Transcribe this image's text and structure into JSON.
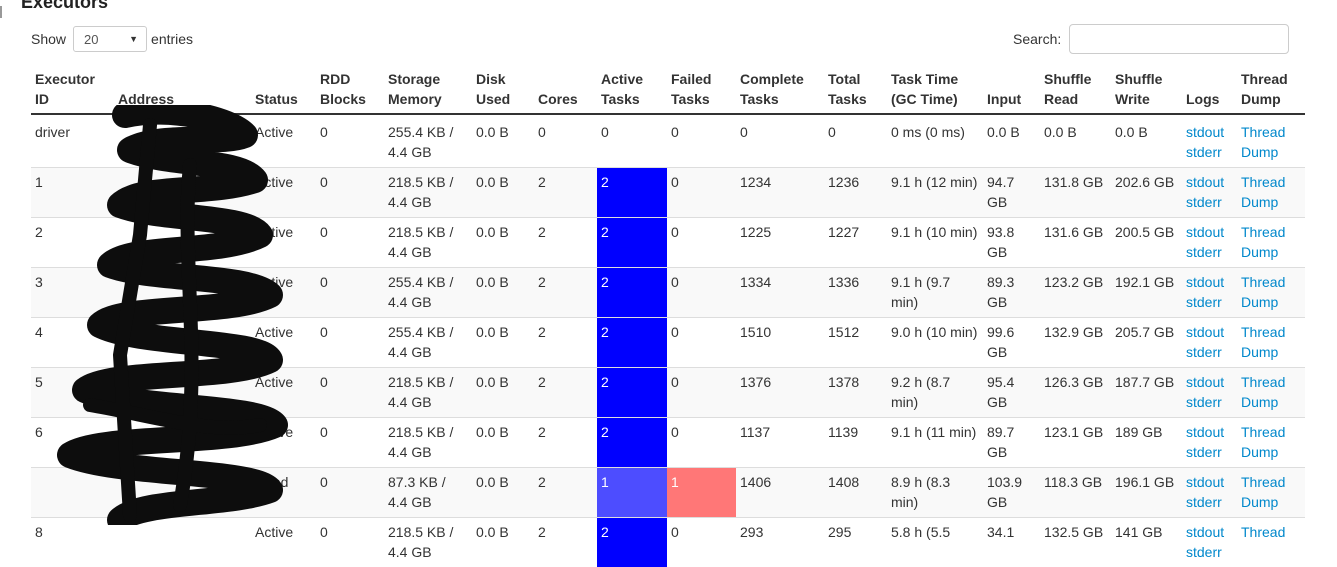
{
  "page": {
    "title": "Executors",
    "show_label": "Show",
    "entries_value": "20",
    "entries_label": "entries",
    "search_label": "Search:",
    "search_value": ""
  },
  "colors": {
    "active_bg": "#0000ff",
    "active_partial_bg": "#4d4dff",
    "failed_bg": "#ff7777",
    "link": "#0088cc"
  },
  "table": {
    "headers": [
      "Executor ID",
      "Address",
      "Status",
      "RDD Blocks",
      "Storage Memory",
      "Disk Used",
      "Cores",
      "Active Tasks",
      "Failed Tasks",
      "Complete Tasks",
      "Total Tasks",
      "Task Time (GC Time)",
      "Input",
      "Shuffle Read",
      "Shuffle Write",
      "Logs",
      "Thread Dump"
    ],
    "rows": [
      {
        "id": "driver",
        "address": "",
        "status": "Active",
        "rdd": "0",
        "storage": "255.4 KB / 4.4 GB",
        "disk": "0.0 B",
        "cores": "0",
        "active": "0",
        "failed": "0",
        "complete": "0",
        "total": "0",
        "task_time": "0 ms (0 ms)",
        "input": "0.0 B",
        "shuffle_read": "0.0 B",
        "shuffle_write": "0.0 B",
        "stdout": "stdout",
        "stderr": "stderr",
        "thread_dump": "Thread Dump"
      },
      {
        "id": "1",
        "address": "",
        "status": "Active",
        "rdd": "0",
        "storage": "218.5 KB / 4.4 GB",
        "disk": "0.0 B",
        "cores": "2",
        "active": "2",
        "failed": "0",
        "complete": "1234",
        "total": "1236",
        "task_time": "9.1 h (12 min)",
        "input": "94.7 GB",
        "shuffle_read": "131.8 GB",
        "shuffle_write": "202.6 GB",
        "stdout": "stdout",
        "stderr": "stderr",
        "thread_dump": "Thread Dump"
      },
      {
        "id": "2",
        "address": "",
        "status": "Active",
        "rdd": "0",
        "storage": "218.5 KB / 4.4 GB",
        "disk": "0.0 B",
        "cores": "2",
        "active": "2",
        "failed": "0",
        "complete": "1225",
        "total": "1227",
        "task_time": "9.1 h (10 min)",
        "input": "93.8 GB",
        "shuffle_read": "131.6 GB",
        "shuffle_write": "200.5 GB",
        "stdout": "stdout",
        "stderr": "stderr",
        "thread_dump": "Thread Dump"
      },
      {
        "id": "3",
        "address": "",
        "status": "Active",
        "rdd": "0",
        "storage": "255.4 KB / 4.4 GB",
        "disk": "0.0 B",
        "cores": "2",
        "active": "2",
        "failed": "0",
        "complete": "1334",
        "total": "1336",
        "task_time": "9.1 h (9.7 min)",
        "input": "89.3 GB",
        "shuffle_read": "123.2 GB",
        "shuffle_write": "192.1 GB",
        "stdout": "stdout",
        "stderr": "stderr",
        "thread_dump": "Thread Dump"
      },
      {
        "id": "4",
        "address": "",
        "status": "Active",
        "rdd": "0",
        "storage": "255.4 KB / 4.4 GB",
        "disk": "0.0 B",
        "cores": "2",
        "active": "2",
        "failed": "0",
        "complete": "1510",
        "total": "1512",
        "task_time": "9.0 h (10 min)",
        "input": "99.6 GB",
        "shuffle_read": "132.9 GB",
        "shuffle_write": "205.7 GB",
        "stdout": "stdout",
        "stderr": "stderr",
        "thread_dump": "Thread Dump"
      },
      {
        "id": "5",
        "address": "",
        "status": "Active",
        "rdd": "0",
        "storage": "218.5 KB / 4.4 GB",
        "disk": "0.0 B",
        "cores": "2",
        "active": "2",
        "failed": "0",
        "complete": "1376",
        "total": "1378",
        "task_time": "9.2 h (8.7 min)",
        "input": "95.4 GB",
        "shuffle_read": "126.3 GB",
        "shuffle_write": "187.7 GB",
        "stdout": "stdout",
        "stderr": "stderr",
        "thread_dump": "Thread Dump"
      },
      {
        "id": "6",
        "address": "",
        "status": "Active",
        "rdd": "0",
        "storage": "218.5 KB / 4.4 GB",
        "disk": "0.0 B",
        "cores": "2",
        "active": "2",
        "failed": "0",
        "complete": "1137",
        "total": "1139",
        "task_time": "9.1 h (11 min)",
        "input": "89.7 GB",
        "shuffle_read": "123.1 GB",
        "shuffle_write": "189 GB",
        "stdout": "stdout",
        "stderr": "stderr",
        "thread_dump": "Thread Dump"
      },
      {
        "id": "",
        "address": "",
        "status": "Dead",
        "rdd": "0",
        "storage": "87.3 KB / 4.4 GB",
        "disk": "0.0 B",
        "cores": "2",
        "active": "1",
        "failed": "1",
        "complete": "1406",
        "total": "1408",
        "task_time": "8.9 h (8.3 min)",
        "input": "103.9 GB",
        "shuffle_read": "118.3 GB",
        "shuffle_write": "196.1 GB",
        "stdout": "stdout",
        "stderr": "stderr",
        "thread_dump": "Thread Dump"
      },
      {
        "id": "8",
        "address": "",
        "status": "Active",
        "rdd": "0",
        "storage": "218.5 KB / 4.4 GB",
        "disk": "0.0 B",
        "cores": "2",
        "active": "2",
        "failed": "0",
        "complete": "293",
        "total": "295",
        "task_time": "5.8 h (5.5",
        "input": "34.1",
        "shuffle_read": "132.5 GB",
        "shuffle_write": "141 GB",
        "stdout": "stdout",
        "stderr": "stderr",
        "thread_dump": "Thread"
      }
    ]
  }
}
